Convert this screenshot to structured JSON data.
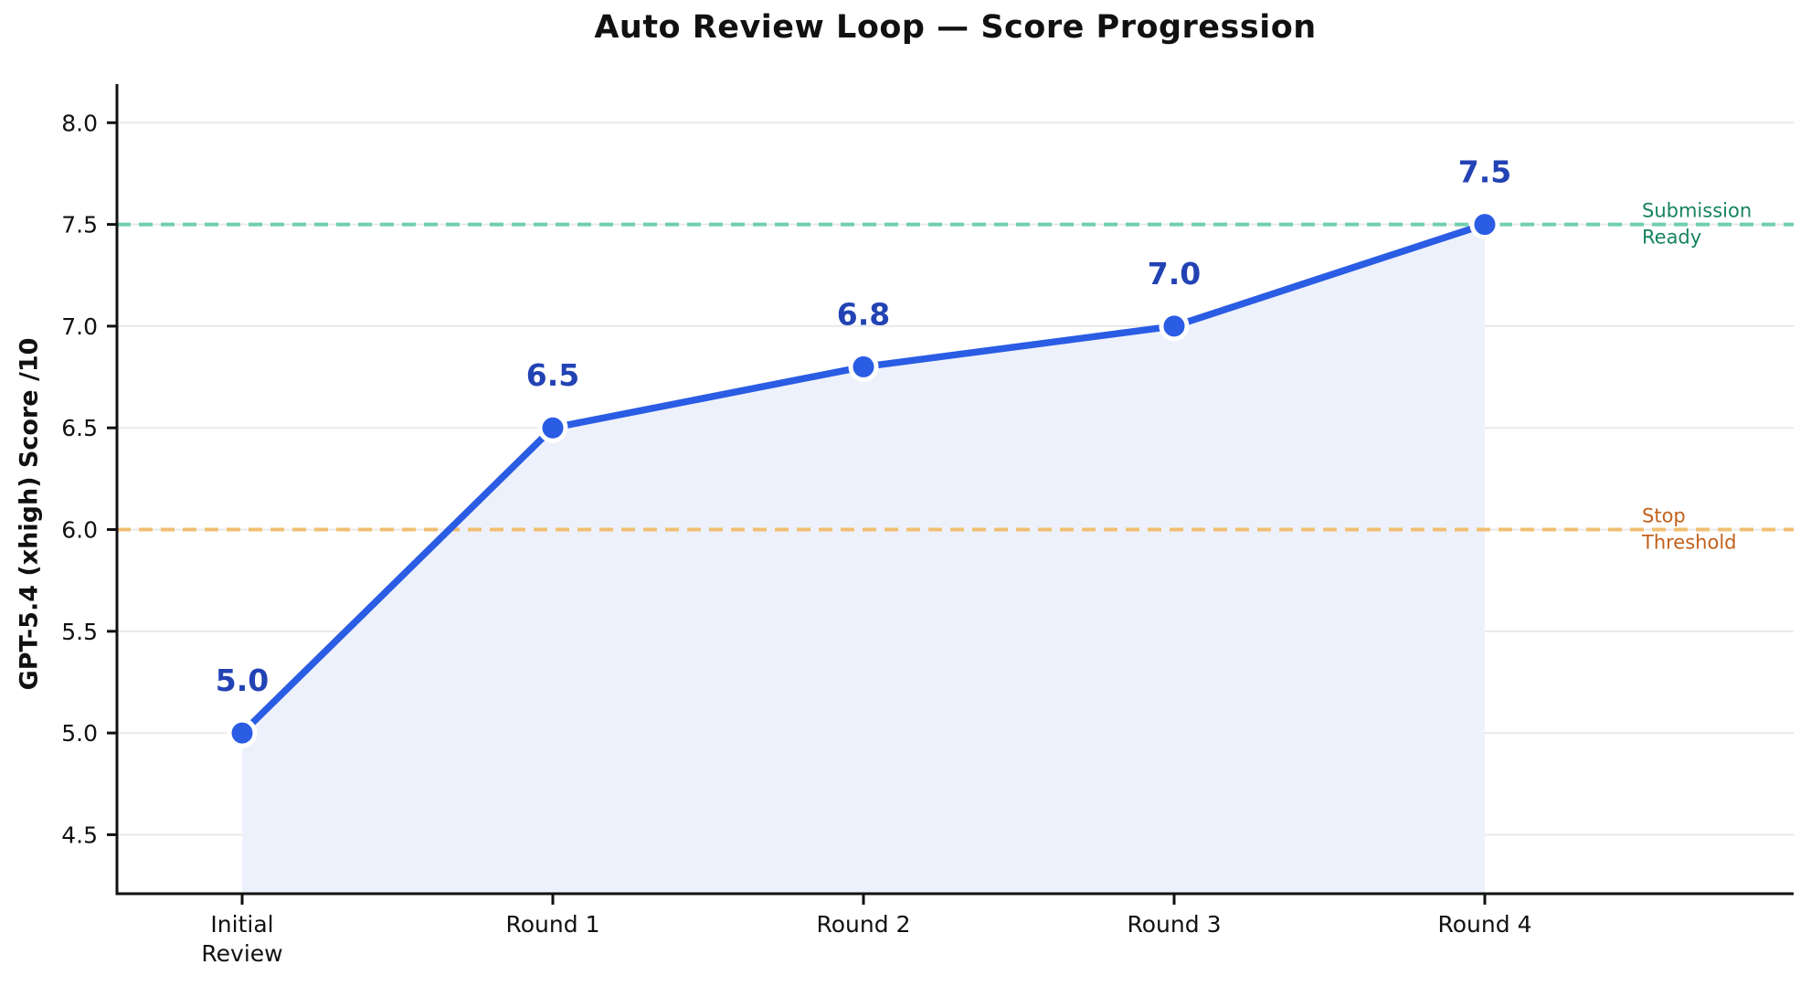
{
  "chart_data": {
    "type": "line",
    "title": "Auto Review Loop — Score Progression",
    "xlabel": "",
    "ylabel": "GPT-5.4 (xhigh) Score  /10",
    "categories": [
      "Initial\nReview",
      "Round 1",
      "Round 2",
      "Round 3",
      "Round 4"
    ],
    "values": [
      5.0,
      6.5,
      6.8,
      7.0,
      7.5
    ],
    "point_labels": [
      "5.0",
      "6.5",
      "6.8",
      "7.0",
      "7.5"
    ],
    "yticks": [
      4.5,
      5.0,
      5.5,
      6.0,
      6.5,
      7.0,
      7.5,
      8.0
    ],
    "ylim": [
      4.21,
      8.19
    ],
    "grid": true,
    "legend": "none",
    "thresholds": [
      {
        "name": "submission-ready-line",
        "value": 7.5,
        "label": "Submission\nReady",
        "line_color": "#6fd0ab",
        "text_color": "#16835f"
      },
      {
        "name": "stop-threshold-line",
        "value": 6.0,
        "label": "Stop\nThreshold",
        "line_color": "#f1bf72",
        "text_color": "#c2611c"
      }
    ],
    "colors": {
      "series_line": "#2a5ce4",
      "marker_fill": "#2a5ce4",
      "marker_edge": "#ffffff",
      "area_fill": "#edf1fb",
      "point_label": "#2343b4",
      "grid_line": "#e9e9e9",
      "axis": "#111111",
      "tick_label": "#111111"
    }
  }
}
